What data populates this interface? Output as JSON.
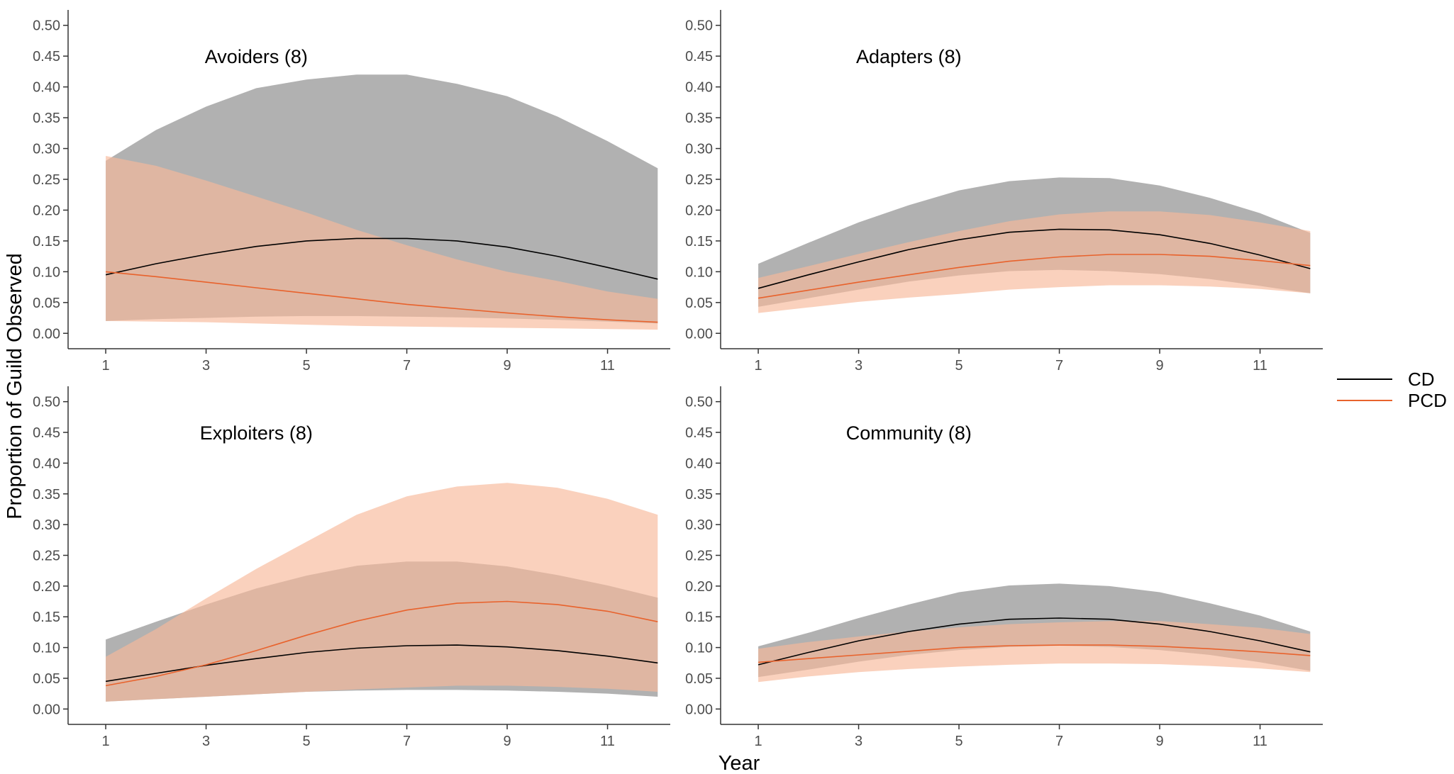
{
  "figure": {
    "ylabel": "Proportion of Guild Observed",
    "xlabel": "Year"
  },
  "legend": {
    "position": "right",
    "items": [
      {
        "label": "CD",
        "color": "#000000"
      },
      {
        "label": "PCD",
        "color": "#e8622c"
      }
    ]
  },
  "colors": {
    "cd_line": "#000000",
    "pcd_line": "#e8622c",
    "cd_band": "#9e9e9e",
    "pcd_band": "#f7b899"
  },
  "chart_data": [
    {
      "type": "line",
      "title": "Avoiders (8)",
      "x": [
        1,
        2,
        3,
        4,
        5,
        6,
        7,
        8,
        9,
        10,
        11,
        12
      ],
      "xticks": [
        1,
        3,
        5,
        7,
        9,
        11
      ],
      "xlim": [
        0.25,
        12.25
      ],
      "yticks": [
        "0.00",
        "0.05",
        "0.10",
        "0.15",
        "0.20",
        "0.25",
        "0.30",
        "0.35",
        "0.40",
        "0.45",
        "0.50"
      ],
      "ylim": [
        -0.025,
        0.525
      ],
      "series": [
        {
          "name": "CD",
          "values": [
            0.095,
            0.113,
            0.128,
            0.141,
            0.15,
            0.154,
            0.154,
            0.15,
            0.14,
            0.125,
            0.107,
            0.088
          ],
          "lower": [
            0.02,
            0.023,
            0.025,
            0.027,
            0.028,
            0.028,
            0.027,
            0.026,
            0.024,
            0.022,
            0.019,
            0.016
          ],
          "upper": [
            0.28,
            0.33,
            0.368,
            0.398,
            0.412,
            0.42,
            0.42,
            0.405,
            0.385,
            0.352,
            0.312,
            0.268
          ]
        },
        {
          "name": "PCD",
          "values": [
            0.1,
            0.092,
            0.083,
            0.074,
            0.065,
            0.056,
            0.047,
            0.04,
            0.033,
            0.027,
            0.022,
            0.018
          ],
          "lower": [
            0.02,
            0.019,
            0.018,
            0.016,
            0.014,
            0.012,
            0.011,
            0.01,
            0.009,
            0.008,
            0.007,
            0.006
          ],
          "upper": [
            0.288,
            0.272,
            0.248,
            0.222,
            0.196,
            0.168,
            0.143,
            0.12,
            0.1,
            0.085,
            0.068,
            0.056
          ]
        }
      ]
    },
    {
      "type": "line",
      "title": "Adapters (8)",
      "x": [
        1,
        2,
        3,
        4,
        5,
        6,
        7,
        8,
        9,
        10,
        11,
        12
      ],
      "xticks": [
        1,
        3,
        5,
        7,
        9,
        11
      ],
      "xlim": [
        0.25,
        12.25
      ],
      "yticks": [
        "0.00",
        "0.05",
        "0.10",
        "0.15",
        "0.20",
        "0.25",
        "0.30",
        "0.35",
        "0.40",
        "0.45",
        "0.50"
      ],
      "ylim": [
        -0.025,
        0.525
      ],
      "series": [
        {
          "name": "CD",
          "values": [
            0.073,
            0.095,
            0.116,
            0.136,
            0.152,
            0.164,
            0.169,
            0.168,
            0.16,
            0.146,
            0.127,
            0.105
          ],
          "lower": [
            0.043,
            0.057,
            0.071,
            0.084,
            0.094,
            0.101,
            0.103,
            0.101,
            0.096,
            0.088,
            0.077,
            0.065
          ],
          "upper": [
            0.113,
            0.147,
            0.18,
            0.208,
            0.232,
            0.247,
            0.253,
            0.252,
            0.24,
            0.22,
            0.195,
            0.163
          ]
        },
        {
          "name": "PCD",
          "values": [
            0.057,
            0.07,
            0.083,
            0.095,
            0.107,
            0.117,
            0.124,
            0.128,
            0.128,
            0.125,
            0.118,
            0.11
          ],
          "lower": [
            0.033,
            0.042,
            0.051,
            0.058,
            0.064,
            0.071,
            0.075,
            0.078,
            0.078,
            0.076,
            0.072,
            0.065
          ],
          "upper": [
            0.09,
            0.109,
            0.129,
            0.148,
            0.166,
            0.182,
            0.193,
            0.198,
            0.198,
            0.192,
            0.18,
            0.166
          ]
        }
      ]
    },
    {
      "type": "line",
      "title": "Exploiters (8)",
      "x": [
        1,
        2,
        3,
        4,
        5,
        6,
        7,
        8,
        9,
        10,
        11,
        12
      ],
      "xticks": [
        1,
        3,
        5,
        7,
        9,
        11
      ],
      "xlim": [
        0.25,
        12.25
      ],
      "yticks": [
        "0.00",
        "0.05",
        "0.10",
        "0.15",
        "0.20",
        "0.25",
        "0.30",
        "0.35",
        "0.40",
        "0.45",
        "0.50"
      ],
      "ylim": [
        -0.025,
        0.525
      ],
      "series": [
        {
          "name": "CD",
          "values": [
            0.045,
            0.058,
            0.071,
            0.082,
            0.092,
            0.099,
            0.103,
            0.104,
            0.101,
            0.095,
            0.086,
            0.075
          ],
          "lower": [
            0.012,
            0.016,
            0.02,
            0.024,
            0.028,
            0.03,
            0.031,
            0.031,
            0.03,
            0.028,
            0.025,
            0.02
          ],
          "upper": [
            0.113,
            0.142,
            0.17,
            0.196,
            0.217,
            0.233,
            0.24,
            0.24,
            0.232,
            0.218,
            0.201,
            0.181
          ]
        },
        {
          "name": "PCD",
          "values": [
            0.038,
            0.053,
            0.072,
            0.095,
            0.12,
            0.143,
            0.161,
            0.172,
            0.175,
            0.17,
            0.159,
            0.142
          ],
          "lower": [
            0.012,
            0.016,
            0.02,
            0.024,
            0.028,
            0.032,
            0.035,
            0.038,
            0.038,
            0.036,
            0.033,
            0.028
          ],
          "upper": [
            0.085,
            0.13,
            0.18,
            0.228,
            0.272,
            0.316,
            0.346,
            0.362,
            0.368,
            0.36,
            0.342,
            0.316
          ]
        }
      ]
    },
    {
      "type": "line",
      "title": "Community (8)",
      "x": [
        1,
        2,
        3,
        4,
        5,
        6,
        7,
        8,
        9,
        10,
        11,
        12
      ],
      "xticks": [
        1,
        3,
        5,
        7,
        9,
        11
      ],
      "xlim": [
        0.25,
        12.25
      ],
      "yticks": [
        "0.00",
        "0.05",
        "0.10",
        "0.15",
        "0.20",
        "0.25",
        "0.30",
        "0.35",
        "0.40",
        "0.45",
        "0.50"
      ],
      "ylim": [
        -0.025,
        0.525
      ],
      "series": [
        {
          "name": "CD",
          "values": [
            0.072,
            0.092,
            0.111,
            0.126,
            0.138,
            0.146,
            0.148,
            0.146,
            0.138,
            0.126,
            0.111,
            0.093
          ],
          "lower": [
            0.052,
            0.064,
            0.077,
            0.088,
            0.096,
            0.101,
            0.103,
            0.101,
            0.096,
            0.088,
            0.076,
            0.062
          ],
          "upper": [
            0.102,
            0.124,
            0.148,
            0.17,
            0.19,
            0.201,
            0.204,
            0.2,
            0.19,
            0.172,
            0.152,
            0.126
          ]
        },
        {
          "name": "PCD",
          "values": [
            0.076,
            0.082,
            0.088,
            0.094,
            0.1,
            0.103,
            0.104,
            0.104,
            0.102,
            0.098,
            0.093,
            0.087
          ],
          "lower": [
            0.044,
            0.053,
            0.06,
            0.065,
            0.069,
            0.072,
            0.074,
            0.074,
            0.073,
            0.07,
            0.066,
            0.06
          ],
          "upper": [
            0.098,
            0.109,
            0.118,
            0.126,
            0.133,
            0.138,
            0.141,
            0.143,
            0.143,
            0.138,
            0.132,
            0.122
          ]
        }
      ]
    }
  ]
}
